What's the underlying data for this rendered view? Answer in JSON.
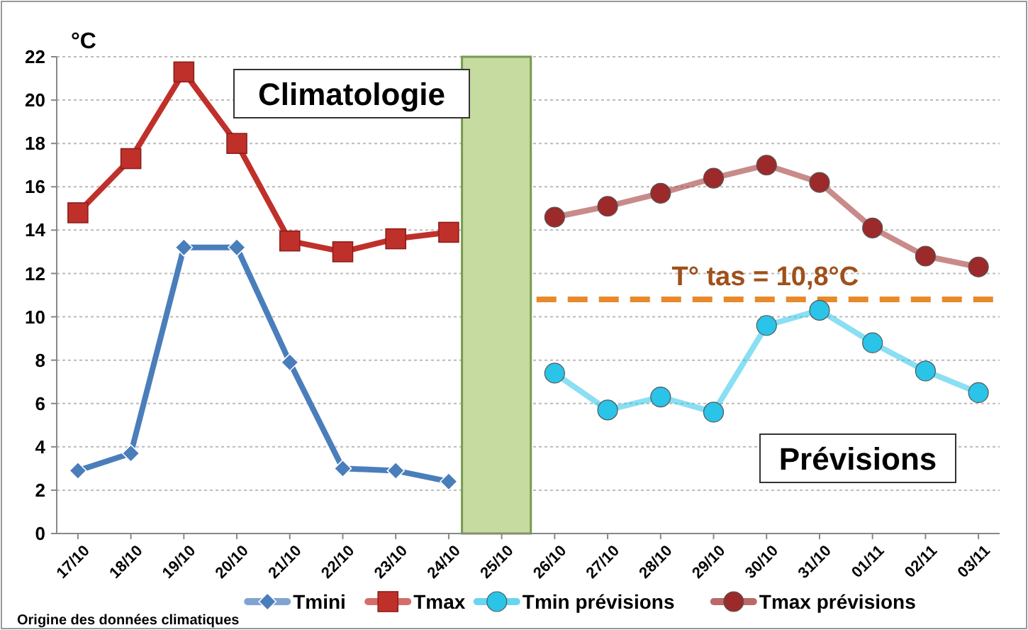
{
  "chart_data": {
    "type": "line",
    "ylabel": "°C",
    "categories": [
      "17/10",
      "18/10",
      "19/10",
      "20/10",
      "21/10",
      "22/10",
      "23/10",
      "24/10",
      "25/10",
      "26/10",
      "27/10",
      "28/10",
      "29/10",
      "30/10",
      "31/10",
      "01/11",
      "02/11",
      "03/11"
    ],
    "series": [
      {
        "name": "Tmini",
        "color": "#4a7ebb",
        "marker": "diamond",
        "values": [
          2.9,
          3.7,
          13.2,
          13.2,
          7.9,
          3.0,
          2.9,
          2.4,
          null,
          null,
          null,
          null,
          null,
          null,
          null,
          null,
          null,
          null
        ]
      },
      {
        "name": "Tmax",
        "color": "#c0302b",
        "marker": "square",
        "values": [
          14.8,
          17.3,
          21.3,
          18.0,
          13.5,
          13.0,
          13.6,
          13.9,
          null,
          null,
          null,
          null,
          null,
          null,
          null,
          null,
          null,
          null
        ]
      },
      {
        "name": "Tmin prévisions",
        "color": "#29c4e8",
        "marker": "circle",
        "values": [
          null,
          null,
          null,
          null,
          null,
          null,
          null,
          null,
          null,
          7.4,
          5.7,
          6.3,
          5.6,
          9.6,
          10.3,
          8.8,
          7.5,
          6.5
        ]
      },
      {
        "name": "Tmax prévisions",
        "color": "#9c2a2a",
        "marker": "circle",
        "values": [
          null,
          null,
          null,
          null,
          null,
          null,
          null,
          null,
          null,
          14.6,
          15.1,
          15.7,
          16.4,
          17.0,
          16.2,
          14.1,
          12.8,
          12.3
        ]
      }
    ],
    "ylim": [
      0,
      22
    ],
    "yticks": [
      0,
      2,
      4,
      6,
      8,
      10,
      12,
      14,
      16,
      18,
      20,
      22
    ],
    "grid": "y",
    "legend": "bottom",
    "ref_lines": [
      {
        "axis": "y",
        "value": 10.8,
        "label": "T° tas = 10,8°C",
        "color": "#e8892b",
        "line_style": "dashed"
      }
    ],
    "annotations": [
      "Climatologie",
      "Prévisions",
      "Origine des données climatiques"
    ]
  }
}
